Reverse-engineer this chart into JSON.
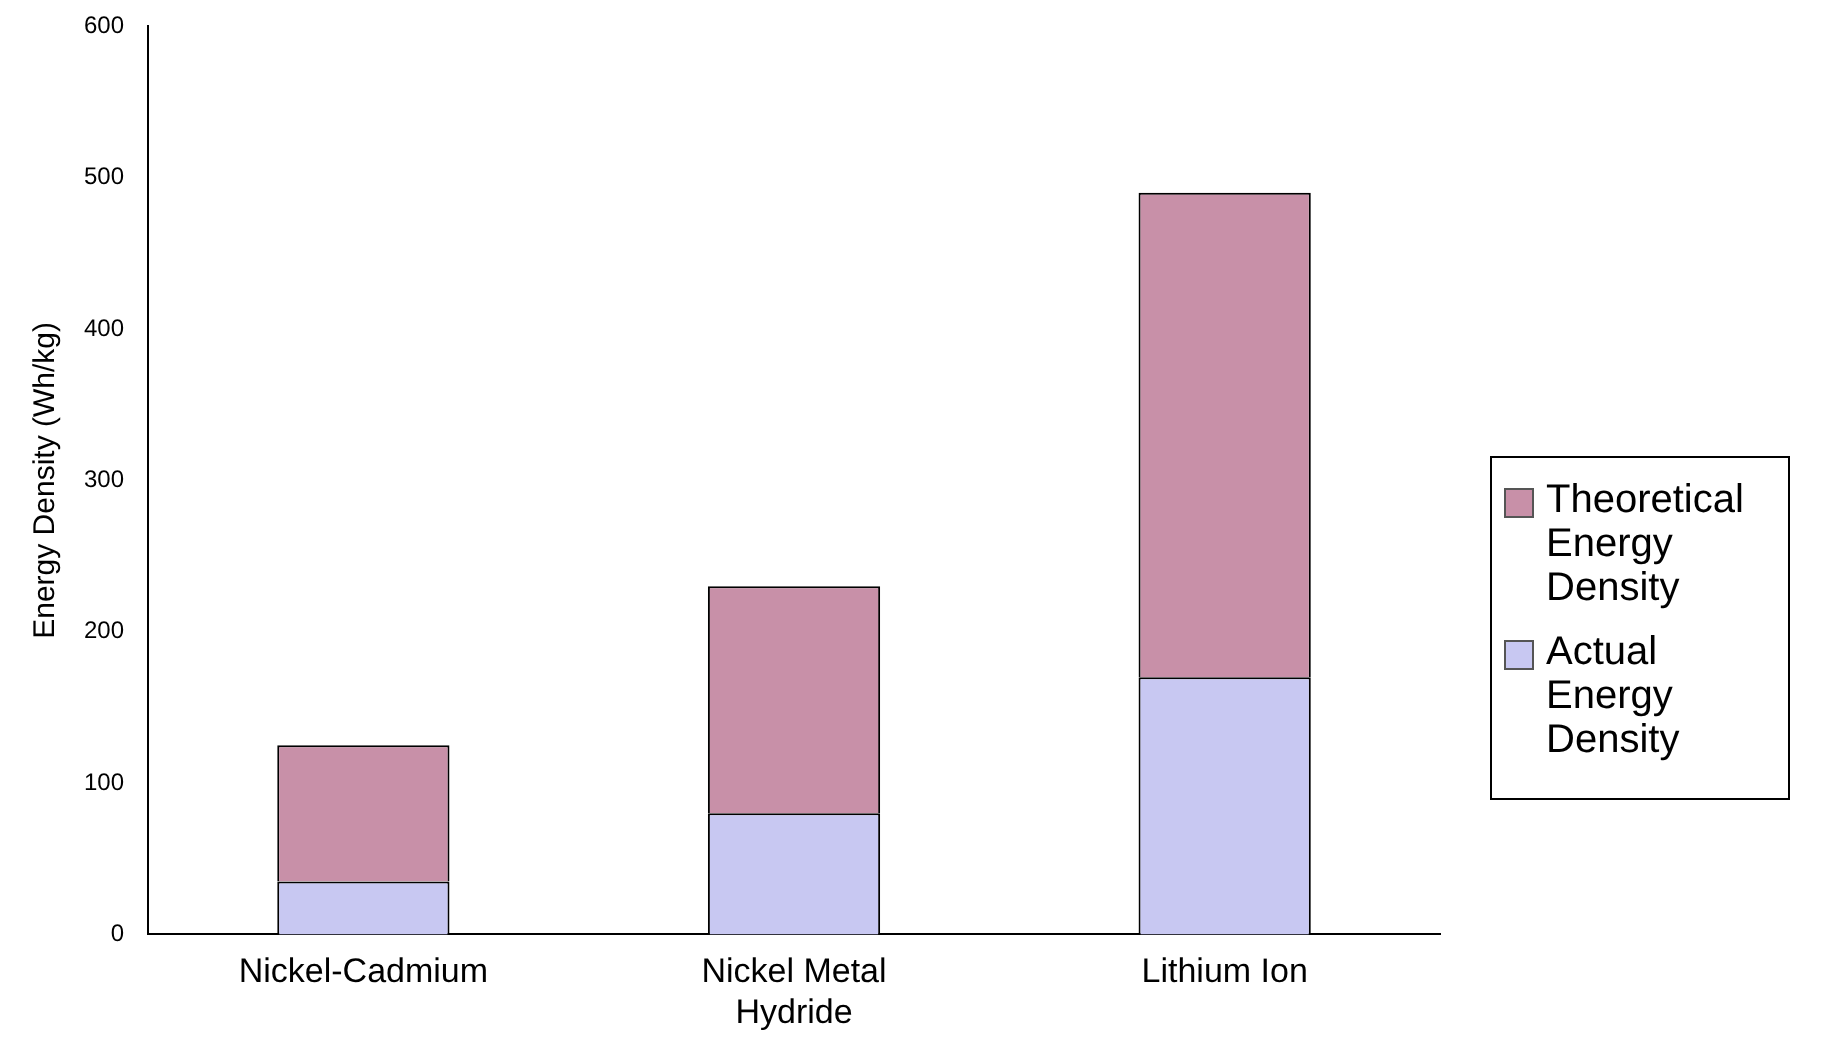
{
  "chart_data": {
    "type": "bar",
    "stacked": true,
    "ylabel": "Energy Density (Wh/kg)",
    "categories": [
      "Nickel-Cadmium",
      "Nickel Metal Hydride",
      "Lithium Ion"
    ],
    "series": [
      {
        "name": "Actual Energy Density",
        "color": "#c8c8f2",
        "values": [
          35,
          80,
          170
        ]
      },
      {
        "name": "Theoretical Energy Density",
        "color": "#c890a8",
        "values": [
          90,
          150,
          320
        ]
      }
    ],
    "ylim": [
      0,
      600
    ],
    "yticks": [
      0,
      100,
      200,
      300,
      400,
      500,
      600
    ],
    "grid": false,
    "legend": "right"
  }
}
